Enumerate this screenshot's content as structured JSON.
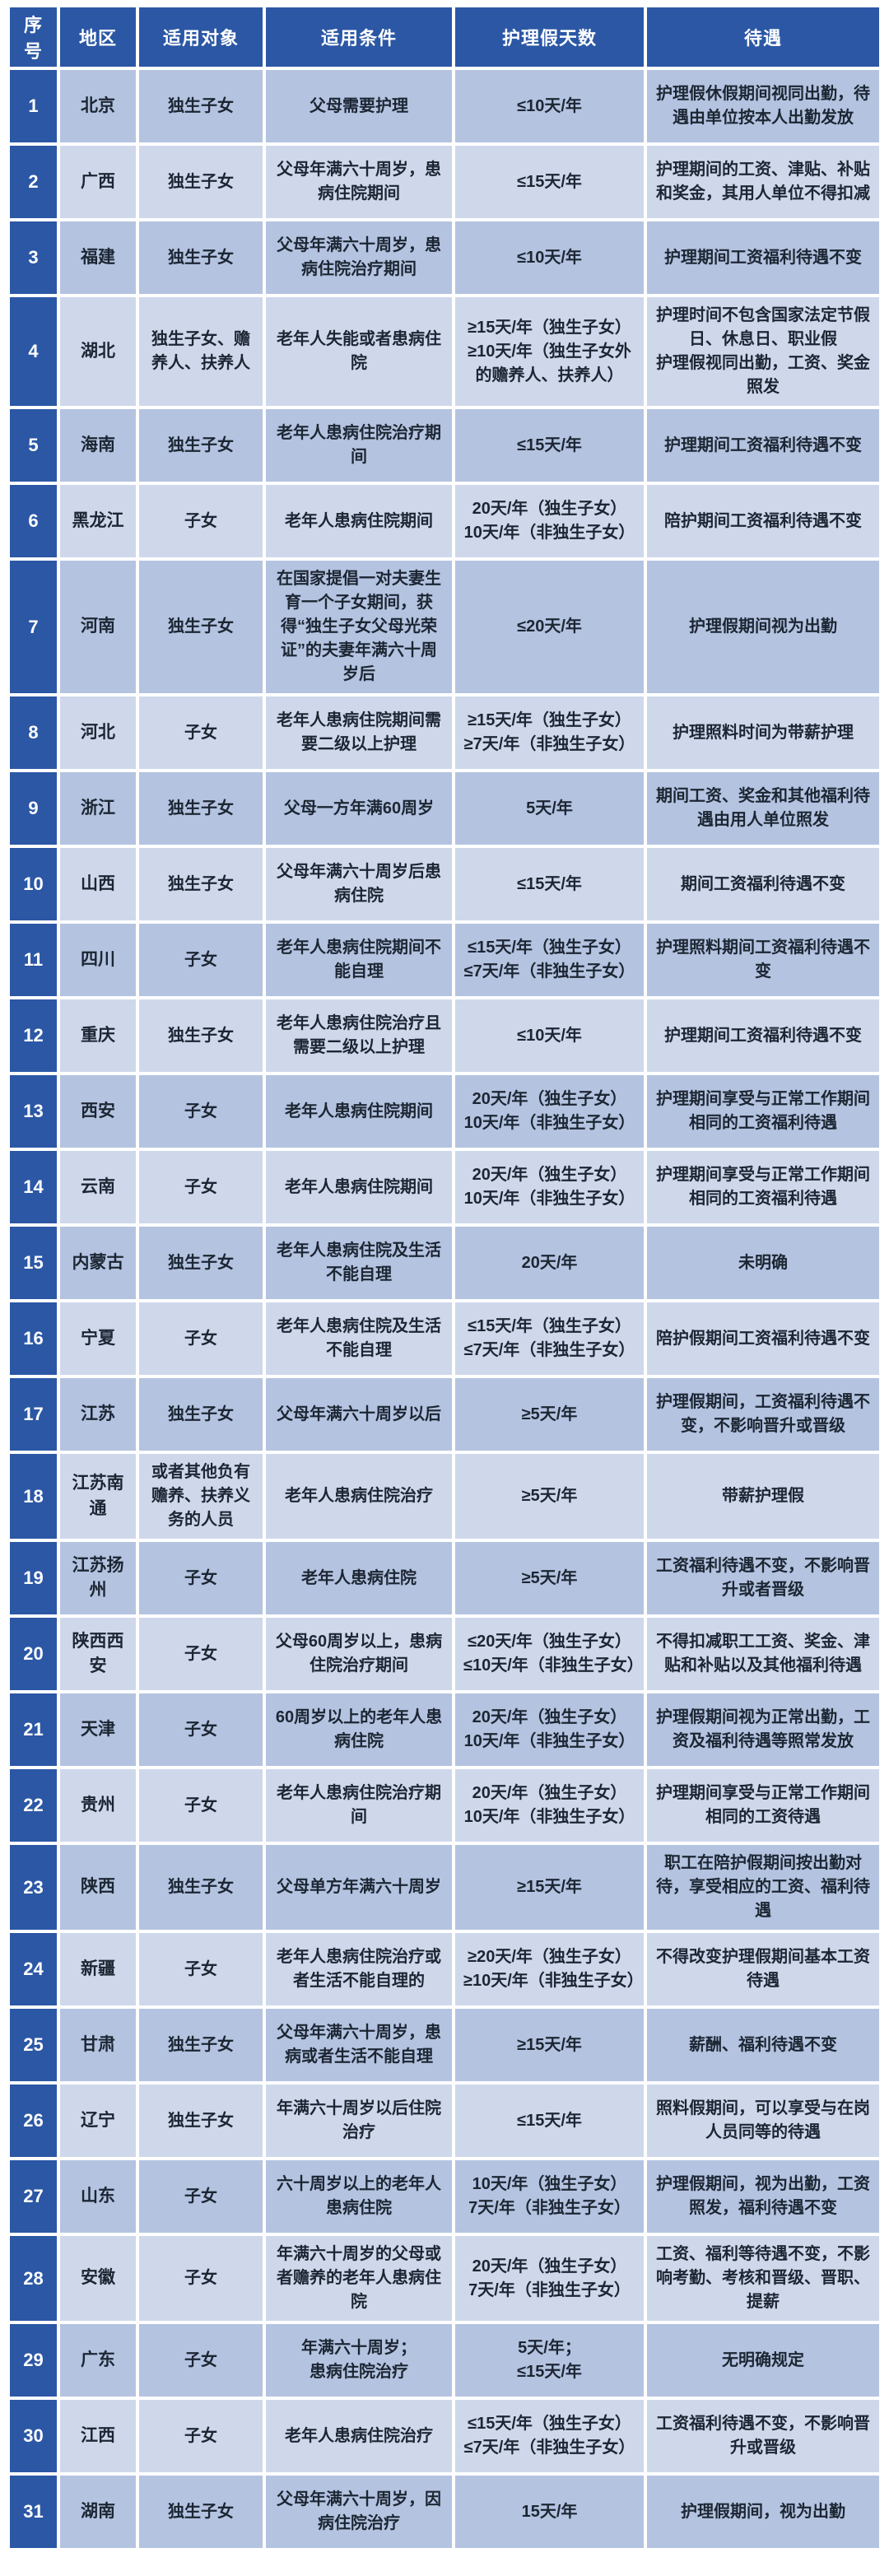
{
  "chart_data": {
    "type": "table",
    "columns": [
      "序号",
      "地区",
      "适用对象",
      "适用条件",
      "护理假天数",
      "待遇"
    ],
    "rows": [
      {
        "no": "1",
        "region": "北京",
        "target": "独生子女",
        "condition": "父母需要护理",
        "days": "≤10天/年",
        "benefit": "护理假休假期间视同出勤，待遇由单位按本人出勤发放"
      },
      {
        "no": "2",
        "region": "广西",
        "target": "独生子女",
        "condition": "父母年满六十周岁，患病住院期间",
        "days": "≤15天/年",
        "benefit": "护理期间的工资、津贴、补贴和奖金，其用人单位不得扣减"
      },
      {
        "no": "3",
        "region": "福建",
        "target": "独生子女",
        "condition": "父母年满六十周岁，患病住院治疗期间",
        "days": "≤10天/年",
        "benefit": "护理期间工资福利待遇不变"
      },
      {
        "no": "4",
        "region": "湖北",
        "target": "独生子女、赡养人、扶养人",
        "condition": "老年人失能或者患病住院",
        "days": "≥15天/年（独生子女）\n≥10天/年（独生子女外的赡养人、扶养人）",
        "benefit": "护理时间不包含国家法定节假日、休息日、职业假\n护理假视同出勤，工资、奖金照发"
      },
      {
        "no": "5",
        "region": "海南",
        "target": "独生子女",
        "condition": "老年人患病住院治疗期间",
        "days": "≤15天/年",
        "benefit": "护理期间工资福利待遇不变"
      },
      {
        "no": "6",
        "region": "黑龙江",
        "target": "子女",
        "condition": "老年人患病住院期间",
        "days": "20天/年（独生子女）\n10天/年（非独生子女）",
        "benefit": "陪护期间工资福利待遇不变"
      },
      {
        "no": "7",
        "region": "河南",
        "target": "独生子女",
        "condition": "在国家提倡一对夫妻生育一个子女期间，获得“独生子女父母光荣证”的夫妻年满六十周岁后",
        "days": "≤20天/年",
        "benefit": "护理假期间视为出勤"
      },
      {
        "no": "8",
        "region": "河北",
        "target": "子女",
        "condition": "老年人患病住院期间需要二级以上护理",
        "days": "≥15天/年（独生子女）\n≥7天/年（非独生子女）",
        "benefit": "护理照料时间为带薪护理"
      },
      {
        "no": "9",
        "region": "浙江",
        "target": "独生子女",
        "condition": "父母一方年满60周岁",
        "days": "5天/年",
        "benefit": "期间工资、奖金和其他福利待遇由用人单位照发"
      },
      {
        "no": "10",
        "region": "山西",
        "target": "独生子女",
        "condition": "父母年满六十周岁后患病住院",
        "days": "≤15天/年",
        "benefit": "期间工资福利待遇不变"
      },
      {
        "no": "11",
        "region": "四川",
        "target": "子女",
        "condition": "老年人患病住院期间不能自理",
        "days": "≤15天/年（独生子女）\n≤7天/年（非独生子女）",
        "benefit": "护理照料期间工资福利待遇不变"
      },
      {
        "no": "12",
        "region": "重庆",
        "target": "独生子女",
        "condition": "老年人患病住院治疗且需要二级以上护理",
        "days": "≤10天/年",
        "benefit": "护理期间工资福利待遇不变"
      },
      {
        "no": "13",
        "region": "西安",
        "target": "子女",
        "condition": "老年人患病住院期间",
        "days": "20天/年（独生子女）\n10天/年（非独生子女）",
        "benefit": "护理期间享受与正常工作期间相同的工资福利待遇"
      },
      {
        "no": "14",
        "region": "云南",
        "target": "子女",
        "condition": "老年人患病住院期间",
        "days": "20天/年（独生子女）\n10天/年（非独生子女）",
        "benefit": "护理期间享受与正常工作期间相同的工资福利待遇"
      },
      {
        "no": "15",
        "region": "内蒙古",
        "target": "独生子女",
        "condition": "老年人患病住院及生活不能自理",
        "days": "20天/年",
        "benefit": "未明确"
      },
      {
        "no": "16",
        "region": "宁夏",
        "target": "子女",
        "condition": "老年人患病住院及生活不能自理",
        "days": "≤15天/年（独生子女）\n≤7天/年（非独生子女）",
        "benefit": "陪护假期间工资福利待遇不变"
      },
      {
        "no": "17",
        "region": "江苏",
        "target": "独生子女",
        "condition": "父母年满六十周岁以后",
        "days": "≥5天/年",
        "benefit": "护理假期间，工资福利待遇不变，不影响晋升或晋级"
      },
      {
        "no": "18",
        "region": "江苏南通",
        "target": "或者其他负有赡养、扶养义务的人员",
        "condition": "老年人患病住院治疗",
        "days": "≥5天/年",
        "benefit": "带薪护理假"
      },
      {
        "no": "19",
        "region": "江苏扬州",
        "target": "子女",
        "condition": "老年人患病住院",
        "days": "≥5天/年",
        "benefit": "工资福利待遇不变，不影响晋升或者晋级"
      },
      {
        "no": "20",
        "region": "陕西西安",
        "target": "子女",
        "condition": "父母60周岁以上，患病住院治疗期间",
        "days": "≤20天/年（独生子女）\n≤10天/年（非独生子女）",
        "benefit": "不得扣减职工工资、奖金、津贴和补贴以及其他福利待遇"
      },
      {
        "no": "21",
        "region": "天津",
        "target": "子女",
        "condition": "60周岁以上的老年人患病住院",
        "days": "20天/年（独生子女）\n10天/年（非独生子女）",
        "benefit": "护理假期间视为正常出勤，工资及福利待遇等照常发放"
      },
      {
        "no": "22",
        "region": "贵州",
        "target": "子女",
        "condition": "老年人患病住院治疗期间",
        "days": "20天/年（独生子女）\n10天/年（非独生子女）",
        "benefit": "护理期间享受与正常工作期间相同的工资待遇"
      },
      {
        "no": "23",
        "region": "陕西",
        "target": "独生子女",
        "condition": "父母单方年满六十周岁",
        "days": "≥15天/年",
        "benefit": "职工在陪护假期间按出勤对待，享受相应的工资、福利待遇"
      },
      {
        "no": "24",
        "region": "新疆",
        "target": "子女",
        "condition": "老年人患病住院治疗或者生活不能自理的",
        "days": "≥20天/年（独生子女）\n≥10天/年（非独生子女）",
        "benefit": "不得改变护理假期间基本工资待遇"
      },
      {
        "no": "25",
        "region": "甘肃",
        "target": "独生子女",
        "condition": "父母年满六十周岁，患病或者生活不能自理",
        "days": "≥15天/年",
        "benefit": "薪酬、福利待遇不变"
      },
      {
        "no": "26",
        "region": "辽宁",
        "target": "独生子女",
        "condition": "年满六十周岁以后住院治疗",
        "days": "≤15天/年",
        "benefit": "照料假期间，可以享受与在岗人员同等的待遇"
      },
      {
        "no": "27",
        "region": "山东",
        "target": "子女",
        "condition": "六十周岁以上的老年人患病住院",
        "days": "10天/年（独生子女）\n7天/年（非独生子女）",
        "benefit": "护理假期间，视为出勤，工资照发，福利待遇不变"
      },
      {
        "no": "28",
        "region": "安徽",
        "target": "子女",
        "condition": "年满六十周岁的父母或者赡养的老年人患病住院",
        "days": "20天/年（独生子女）\n7天/年（非独生子女）",
        "benefit": "工资、福利等待遇不变，不影响考勤、考核和晋级、晋职、提薪"
      },
      {
        "no": "29",
        "region": "广东",
        "target": "子女",
        "condition": "年满六十周岁；\n患病住院治疗",
        "days": "5天/年；\n≤15天/年",
        "benefit": "无明确规定"
      },
      {
        "no": "30",
        "region": "江西",
        "target": "子女",
        "condition": "老年人患病住院治疗",
        "days": "≤15天/年（独生子女）\n≤7天/年（非独生子女）",
        "benefit": "工资福利待遇不变，不影响晋升或晋级"
      },
      {
        "no": "31",
        "region": "湖南",
        "target": "独生子女",
        "condition": "父母年满六十周岁，因病住院治疗",
        "days": "15天/年",
        "benefit": "护理假期间，视为出勤"
      }
    ]
  },
  "colors": {
    "header_bg": "#2B57A5",
    "index_bg": "#2B57A5",
    "header_text": "#FFFFFF",
    "row_odd_bg": "#B4C3E0",
    "row_even_bg": "#CFD8EB",
    "body_text": "#1C2633",
    "gap": "#FFFFFF"
  }
}
